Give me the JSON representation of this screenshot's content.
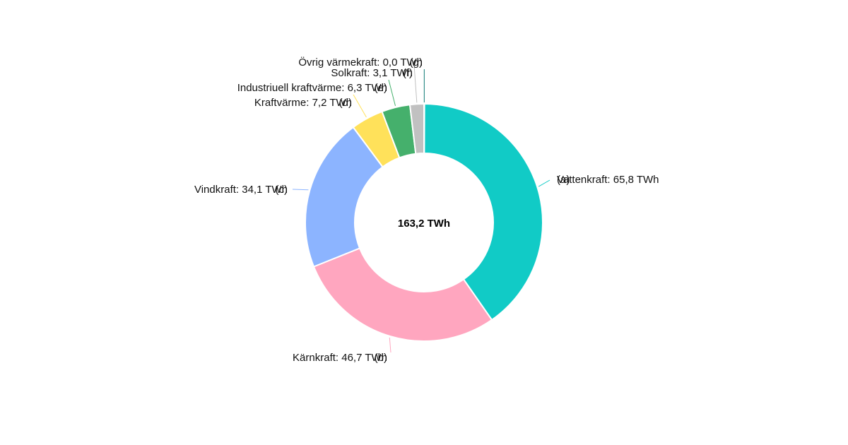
{
  "chart_data": {
    "type": "pie",
    "donut": true,
    "total_label": "163,2 TWh",
    "slices": [
      {
        "name": "Vattenkraft",
        "value": 65.8,
        "label": "Vattenkraft: 65,8 TWh",
        "tag": "(a)",
        "color": "#11cbc6"
      },
      {
        "name": "Kärnkraft",
        "value": 46.7,
        "label": "Kärnkraft: 46,7 TWh",
        "tag": "(b)",
        "color": "#ffa6bf"
      },
      {
        "name": "Vindkraft",
        "value": 34.1,
        "label": "Vindkraft: 34,1 TWh",
        "tag": "(c)",
        "color": "#8cb4ff"
      },
      {
        "name": "Kraftvärme",
        "value": 7.2,
        "label": "Kraftvärme: 7,2 TWh",
        "tag": "(d)",
        "color": "#ffe15a"
      },
      {
        "name": "Industriuell kraftvärme",
        "value": 6.3,
        "label": "Industriuell kraftvärme: 6,3 TWh",
        "tag": "(e)",
        "color": "#45b06c"
      },
      {
        "name": "Solkraft",
        "value": 3.1,
        "label": "Solkraft: 3,1 TWh",
        "tag": "(f)",
        "color": "#c1c1c1"
      },
      {
        "name": "Övrig värmekraft",
        "value": 0.0,
        "label": "Övrig värmekraft: 0,0 TWh",
        "tag": "(g)",
        "color": "#0c7a74"
      }
    ]
  }
}
